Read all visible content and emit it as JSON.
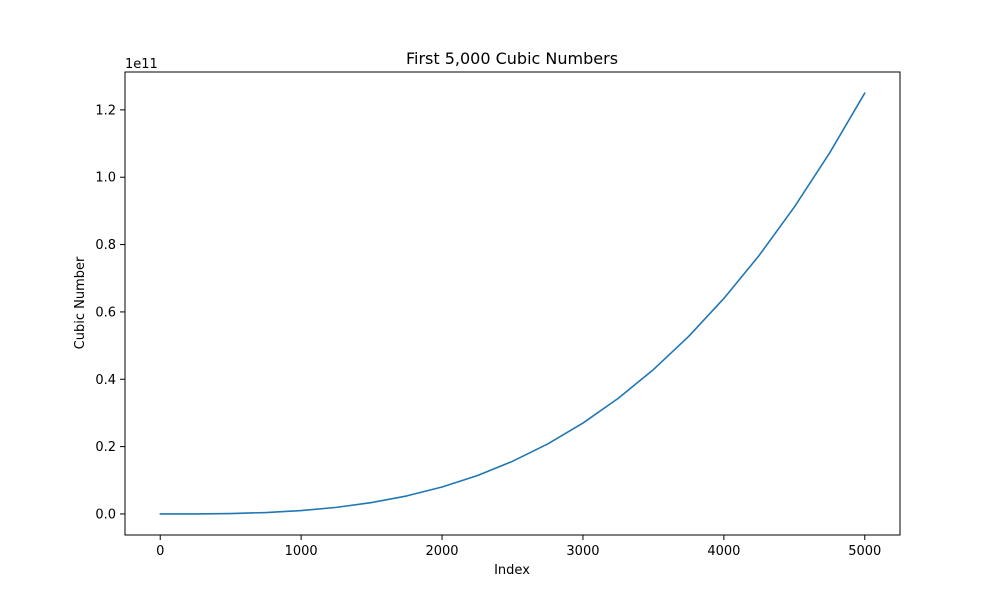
{
  "chart_data": {
    "type": "line",
    "title": "First 5,000 Cubic Numbers",
    "xlabel": "Index",
    "ylabel": "Cubic Number",
    "y_offset_label": "1e11",
    "xlim": [
      -250,
      5250
    ],
    "ylim": [
      -0.0625,
      1.3125
    ],
    "x_ticks": [
      0,
      1000,
      2000,
      3000,
      4000,
      5000
    ],
    "x_tick_labels": [
      "0",
      "1000",
      "2000",
      "3000",
      "4000",
      "5000"
    ],
    "y_ticks": [
      0.0,
      0.2,
      0.4,
      0.6,
      0.8,
      1.0,
      1.2
    ],
    "y_tick_labels": [
      "0.0",
      "0.2",
      "0.4",
      "0.6",
      "0.8",
      "1.0",
      "1.2"
    ],
    "grid": false,
    "series": [
      {
        "color": "#1f77b4",
        "x": [
          0,
          250,
          500,
          750,
          1000,
          1250,
          1500,
          1750,
          2000,
          2250,
          2500,
          2750,
          3000,
          3250,
          3500,
          3750,
          4000,
          4250,
          4500,
          4750,
          5000
        ],
        "y": [
          0,
          0.00016,
          0.00125,
          0.0042,
          0.01,
          0.0195,
          0.0338,
          0.0536,
          0.08,
          0.1139,
          0.1563,
          0.208,
          0.27,
          0.3433,
          0.4288,
          0.5273,
          0.64,
          0.7677,
          0.9113,
          1.0717,
          1.25
        ]
      }
    ]
  }
}
